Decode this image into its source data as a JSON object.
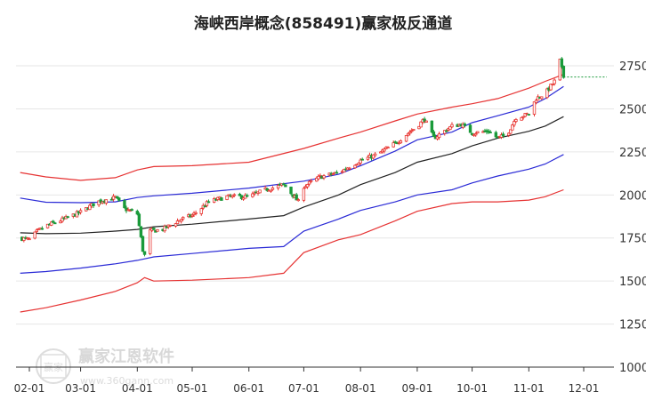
{
  "chart_data": {
    "type": "candlestick",
    "title": "海峡西岸概念(858491)赢家极反通道",
    "xlabel": "",
    "ylabel": "",
    "y_ticks": [
      1000,
      1250,
      1500,
      1750,
      2000,
      2250,
      2500,
      2750
    ],
    "ylim": [
      1000,
      2900
    ],
    "x_ticks": [
      "02-01",
      "03-01",
      "04-01",
      "05-01",
      "06-01",
      "07-01",
      "08-01",
      "09-01",
      "10-01",
      "11-01",
      "12-01"
    ],
    "grid": "horizontal",
    "legend": "none",
    "last_close": 2685,
    "colors": {
      "up": "#e8332f",
      "down": "#1a9a3a",
      "outer_band": "#e63232",
      "inner_band": "#2a2ad6",
      "mid_line": "#222222",
      "grid": "#e6e6e6",
      "last_price_line": "#1a9a3a"
    },
    "series": [
      {
        "role": "outer-upper-band",
        "points": [
          [
            "01-27",
            2130
          ],
          [
            "02-10",
            2105
          ],
          [
            "03-01",
            2085
          ],
          [
            "03-20",
            2100
          ],
          [
            "04-01",
            2145
          ],
          [
            "04-10",
            2165
          ],
          [
            "05-01",
            2170
          ],
          [
            "06-01",
            2190
          ],
          [
            "07-01",
            2270
          ],
          [
            "07-20",
            2330
          ],
          [
            "08-01",
            2365
          ],
          [
            "08-20",
            2430
          ],
          [
            "09-01",
            2470
          ],
          [
            "09-20",
            2510
          ],
          [
            "10-01",
            2530
          ],
          [
            "10-15",
            2560
          ],
          [
            "11-01",
            2620
          ],
          [
            "11-10",
            2660
          ],
          [
            "11-20",
            2700
          ]
        ]
      },
      {
        "role": "inner-upper-band",
        "points": [
          [
            "01-27",
            1982
          ],
          [
            "02-10",
            1958
          ],
          [
            "03-01",
            1955
          ],
          [
            "03-20",
            1960
          ],
          [
            "04-01",
            1985
          ],
          [
            "04-10",
            1995
          ],
          [
            "05-01",
            2010
          ],
          [
            "06-01",
            2040
          ],
          [
            "07-01",
            2080
          ],
          [
            "07-20",
            2120
          ],
          [
            "08-01",
            2170
          ],
          [
            "08-20",
            2255
          ],
          [
            "09-01",
            2320
          ],
          [
            "09-20",
            2365
          ],
          [
            "10-01",
            2420
          ],
          [
            "10-15",
            2460
          ],
          [
            "11-01",
            2510
          ],
          [
            "11-10",
            2560
          ],
          [
            "11-20",
            2630
          ]
        ]
      },
      {
        "role": "middle-line",
        "points": [
          [
            "01-27",
            1780
          ],
          [
            "02-10",
            1775
          ],
          [
            "03-01",
            1778
          ],
          [
            "03-20",
            1790
          ],
          [
            "04-01",
            1800
          ],
          [
            "04-10",
            1815
          ],
          [
            "05-01",
            1830
          ],
          [
            "06-01",
            1860
          ],
          [
            "06-20",
            1880
          ],
          [
            "07-01",
            1930
          ],
          [
            "07-20",
            2000
          ],
          [
            "08-01",
            2060
          ],
          [
            "08-20",
            2130
          ],
          [
            "09-01",
            2190
          ],
          [
            "09-20",
            2240
          ],
          [
            "10-01",
            2285
          ],
          [
            "10-15",
            2330
          ],
          [
            "11-01",
            2370
          ],
          [
            "11-10",
            2400
          ],
          [
            "11-20",
            2455
          ]
        ]
      },
      {
        "role": "inner-lower-band",
        "points": [
          [
            "01-27",
            1545
          ],
          [
            "02-10",
            1555
          ],
          [
            "03-01",
            1575
          ],
          [
            "03-20",
            1600
          ],
          [
            "04-01",
            1620
          ],
          [
            "04-10",
            1640
          ],
          [
            "05-01",
            1660
          ],
          [
            "06-01",
            1690
          ],
          [
            "06-20",
            1700
          ],
          [
            "07-01",
            1790
          ],
          [
            "07-20",
            1860
          ],
          [
            "08-01",
            1910
          ],
          [
            "08-20",
            1960
          ],
          [
            "09-01",
            2000
          ],
          [
            "09-20",
            2030
          ],
          [
            "10-01",
            2070
          ],
          [
            "10-15",
            2110
          ],
          [
            "11-01",
            2150
          ],
          [
            "11-10",
            2180
          ],
          [
            "11-20",
            2235
          ]
        ]
      },
      {
        "role": "outer-lower-band",
        "points": [
          [
            "01-27",
            1320
          ],
          [
            "02-10",
            1345
          ],
          [
            "03-01",
            1390
          ],
          [
            "03-20",
            1440
          ],
          [
            "04-01",
            1490
          ],
          [
            "04-05",
            1520
          ],
          [
            "04-10",
            1500
          ],
          [
            "05-01",
            1505
          ],
          [
            "06-01",
            1520
          ],
          [
            "06-20",
            1545
          ],
          [
            "07-01",
            1665
          ],
          [
            "07-20",
            1740
          ],
          [
            "08-01",
            1770
          ],
          [
            "08-20",
            1850
          ],
          [
            "09-01",
            1905
          ],
          [
            "09-20",
            1950
          ],
          [
            "10-01",
            1960
          ],
          [
            "10-15",
            1960
          ],
          [
            "11-01",
            1970
          ],
          [
            "11-10",
            1990
          ],
          [
            "11-20",
            2030
          ]
        ]
      },
      {
        "role": "price",
        "points": [
          [
            "01-27",
            1750
          ],
          [
            "02-01",
            1740
          ],
          [
            "02-05",
            1785
          ],
          [
            "02-10",
            1820
          ],
          [
            "02-20",
            1860
          ],
          [
            "03-01",
            1900
          ],
          [
            "03-10",
            1960
          ],
          [
            "03-20",
            1985
          ],
          [
            "03-25",
            1920
          ],
          [
            "04-01",
            1890
          ],
          [
            "04-04",
            1680
          ],
          [
            "04-06",
            1620
          ],
          [
            "04-08",
            1790
          ],
          [
            "04-15",
            1800
          ],
          [
            "04-25",
            1860
          ],
          [
            "05-01",
            1880
          ],
          [
            "05-10",
            1960
          ],
          [
            "05-20",
            1990
          ],
          [
            "06-01",
            1990
          ],
          [
            "06-10",
            2030
          ],
          [
            "06-20",
            2060
          ],
          [
            "06-25",
            2000
          ],
          [
            "06-28",
            1960
          ],
          [
            "07-01",
            2050
          ],
          [
            "07-10",
            2105
          ],
          [
            "07-20",
            2130
          ],
          [
            "08-01",
            2200
          ],
          [
            "08-10",
            2235
          ],
          [
            "08-20",
            2300
          ],
          [
            "09-01",
            2400
          ],
          [
            "09-05",
            2440
          ],
          [
            "09-10",
            2330
          ],
          [
            "09-15",
            2365
          ],
          [
            "09-20",
            2400
          ],
          [
            "09-25",
            2410
          ],
          [
            "10-01",
            2360
          ],
          [
            "10-10",
            2370
          ],
          [
            "10-15",
            2330
          ],
          [
            "10-20",
            2350
          ],
          [
            "10-25",
            2450
          ],
          [
            "11-01",
            2470
          ],
          [
            "11-05",
            2560
          ],
          [
            "11-10",
            2590
          ],
          [
            "11-15",
            2660
          ],
          [
            "11-18",
            2780
          ],
          [
            "11-20",
            2685
          ]
        ]
      }
    ]
  },
  "watermark": {
    "logo_text": "赢家",
    "brand_text": "赢家江恩软件",
    "url_text": "www.360gann.com"
  }
}
